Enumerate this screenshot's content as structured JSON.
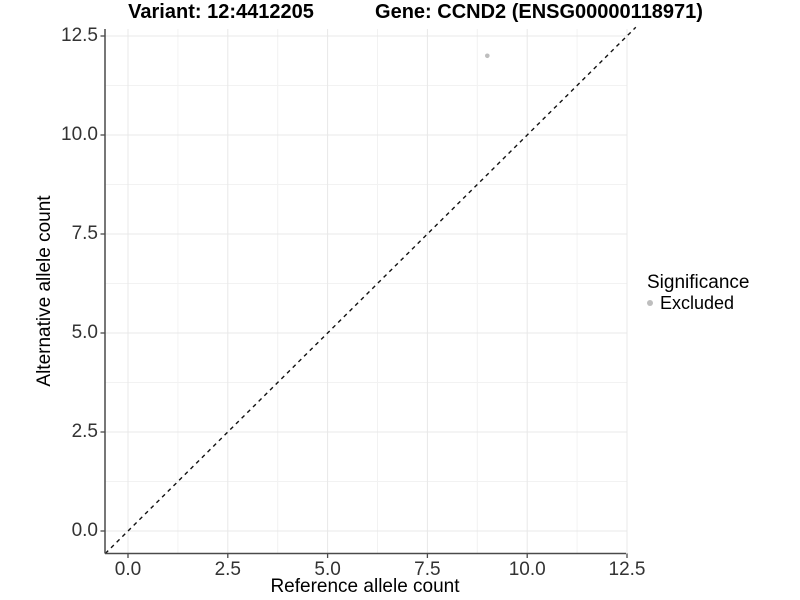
{
  "chart_data": {
    "type": "scatter",
    "titles": [
      "Variant: 12:4412205",
      "Gene: CCND2 (ENSG00000118971)"
    ],
    "xlabel": "Reference allele count",
    "ylabel": "Alternative allele count",
    "xlim": [
      0,
      12.5
    ],
    "ylim": [
      0,
      12.5
    ],
    "x_ticks": [
      0,
      2.5,
      5,
      7.5,
      10,
      12.5
    ],
    "x_tick_labels": [
      "0.0",
      "2.5",
      "5.0",
      "7.5",
      "10.0",
      "12.5"
    ],
    "y_ticks": [
      0,
      2.5,
      5,
      7.5,
      10,
      12.5
    ],
    "y_tick_labels": [
      "0.0",
      "2.5",
      "5.0",
      "7.5",
      "10.0",
      "12.5"
    ],
    "series": [
      {
        "name": "Excluded",
        "color": "#bebebe",
        "points": [
          [
            9,
            12
          ]
        ]
      }
    ],
    "reference_line": {
      "type": "identity y = x",
      "style": "dashed",
      "color": "#111111"
    },
    "legend": {
      "title": "Significance",
      "position": "right"
    },
    "grid": {
      "on": true,
      "major_color": "#e8e8e8",
      "minor_color": "#f2f2f2"
    },
    "axis_color": "#4a4a4a",
    "tick_label_color": "#333333"
  }
}
